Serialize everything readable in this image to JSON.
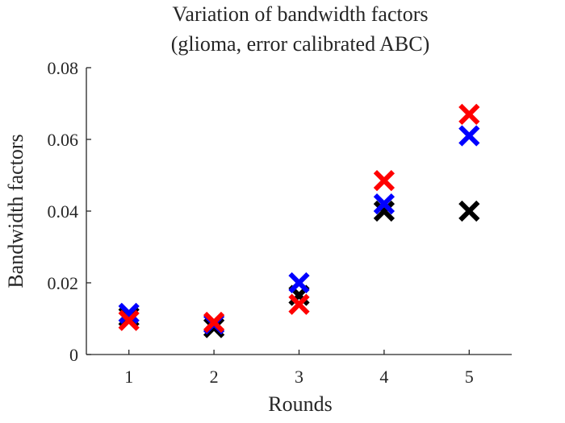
{
  "chart_data": {
    "type": "scatter",
    "title_lines": [
      "Variation of bandwidth factors",
      "(glioma, error calibrated ABC)"
    ],
    "xlabel": "Rounds",
    "ylabel": "Bandwidth factors",
    "xlim": [
      0.5,
      5.5
    ],
    "ylim": [
      0,
      0.08
    ],
    "xticks": [
      1,
      2,
      3,
      4,
      5
    ],
    "xtick_labels": [
      "1",
      "2",
      "3",
      "4",
      "5"
    ],
    "yticks": [
      0,
      0.02,
      0.04,
      0.06,
      0.08
    ],
    "ytick_labels": [
      "0",
      "0.02",
      "0.04",
      "0.06",
      "0.08"
    ],
    "grid": false,
    "marker": "x",
    "series": [
      {
        "color": "#000000",
        "x": [
          1,
          2,
          3,
          4,
          5
        ],
        "y": [
          0.0105,
          0.0075,
          0.0165,
          0.04,
          0.04
        ]
      },
      {
        "color": "#0000ff",
        "x": [
          1,
          2,
          3,
          4,
          5
        ],
        "y": [
          0.0115,
          0.0085,
          0.02,
          0.042,
          0.061
        ]
      },
      {
        "color": "#ff0000",
        "x": [
          1,
          2,
          3,
          4,
          5
        ],
        "y": [
          0.0095,
          0.009,
          0.014,
          0.0485,
          0.067
        ]
      }
    ]
  }
}
